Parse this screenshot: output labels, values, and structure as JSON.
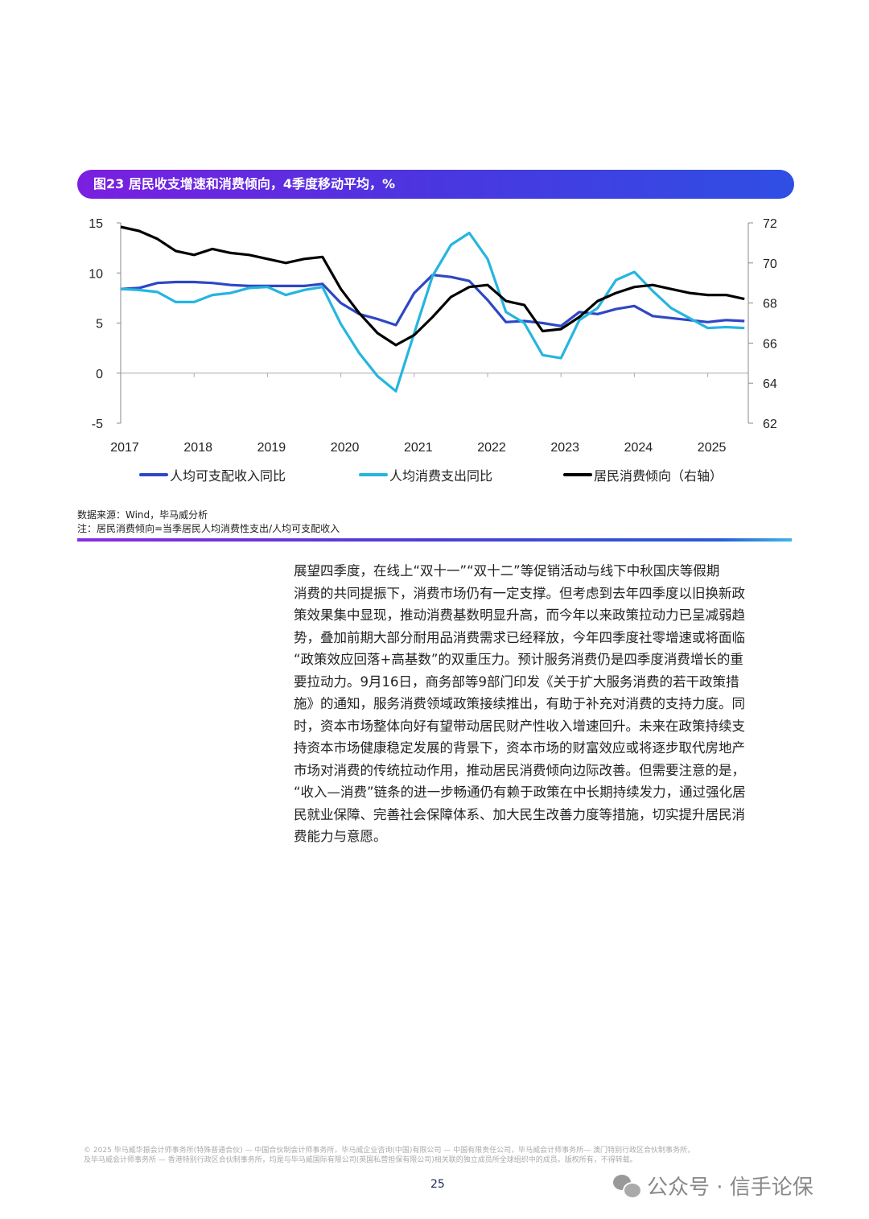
{
  "figure": {
    "title": "图23 居民收支增速和消费倾向，4季度移动平均，%",
    "source": "数据来源：Wind，毕马威分析",
    "note": "注：居民消费倾向=当季居民人均消费性支出/人均可支配收入"
  },
  "chart_data": {
    "type": "line",
    "title": "图23 居民收支增速和消费倾向，4季度移动平均，%",
    "x_tick_labels": [
      "2017",
      "2018",
      "2019",
      "2020",
      "2021",
      "2022",
      "2023",
      "2024",
      "2025"
    ],
    "x_frequency": "quarterly, 2017Q1–2025Q3",
    "y_left": {
      "lim": [
        -5,
        15
      ],
      "ticks": [
        "-5",
        "0",
        "5",
        "10",
        "15"
      ]
    },
    "y_right": {
      "lim": [
        62,
        72
      ],
      "ticks": [
        "62",
        "64",
        "66",
        "68",
        "70",
        "72"
      ]
    },
    "legend_position": "bottom",
    "grid": false,
    "series": [
      {
        "name": "人均可支配收入同比",
        "axis": "left",
        "color": "#2e47c4",
        "values": [
          8.4,
          8.5,
          9.0,
          9.1,
          9.1,
          9.0,
          8.8,
          8.7,
          8.7,
          8.7,
          8.7,
          8.9,
          7.0,
          5.9,
          5.4,
          4.8,
          8.0,
          9.8,
          9.6,
          9.2,
          7.3,
          5.1,
          5.2,
          5.0,
          4.7,
          6.1,
          5.9,
          6.4,
          6.7,
          5.7,
          5.5,
          5.3,
          5.1,
          5.3,
          5.2
        ]
      },
      {
        "name": "人均消费支出同比",
        "axis": "left",
        "color": "#25b5e0",
        "values": [
          8.4,
          8.3,
          8.1,
          7.1,
          7.1,
          7.8,
          8.0,
          8.5,
          8.6,
          7.8,
          8.3,
          8.6,
          4.9,
          2.0,
          -0.3,
          -1.8,
          4.0,
          9.7,
          12.8,
          14.0,
          11.4,
          6.1,
          5.0,
          1.8,
          1.5,
          5.3,
          6.5,
          9.3,
          10.1,
          8.2,
          6.5,
          5.5,
          4.5,
          4.6,
          4.5
        ]
      },
      {
        "name": "居民消费倾向（右轴）",
        "axis": "right",
        "color": "#000000",
        "values": [
          71.8,
          71.6,
          71.2,
          70.6,
          70.4,
          70.7,
          70.5,
          70.4,
          70.2,
          70.0,
          70.2,
          70.3,
          68.7,
          67.5,
          66.5,
          65.9,
          66.4,
          67.3,
          68.3,
          68.8,
          68.9,
          68.1,
          67.9,
          66.6,
          66.7,
          67.3,
          68.1,
          68.5,
          68.8,
          68.9,
          68.7,
          68.5,
          68.4,
          68.4,
          68.2
        ]
      }
    ]
  },
  "body": {
    "lines": [
      "展望四季度，在线上“双十一”“双十二”等促销活动与线下中秋国庆等假期",
      "消费的共同提振下，消费市场仍有一定支撑。但考虑到去年四季度以旧换新政",
      "策效果集中显现，推动消费基数明显升高，而今年以来政策拉动力已呈减弱趋",
      "势，叠加前期大部分耐用品消费需求已经释放，今年四季度社零增速或将面临",
      "“政策效应回落+高基数”的双重压力。预计服务消费仍是四季度消费增长的重",
      "要拉动力。9月16日，商务部等9部门印发《关于扩大服务消费的若干政策措",
      "施》的通知，服务消费领域政策接续推出，有助于补充对消费的支持力度。同",
      "时，资本市场整体向好有望带动居民财产性收入增速回升。未来在政策持续支",
      "持资本市场健康稳定发展的背景下，资本市场的财富效应或将逐步取代房地产",
      "市场对消费的传统拉动作用，推动居民消费倾向边际改善。但需要注意的是，",
      "“收入—消费”链条的进一步畅通仍有赖于政策在中长期持续发力，通过强化居",
      "民就业保障、完善社会保障体系、加大民生改善力度等措施，切实提升居民消",
      "费能力与意愿。"
    ]
  },
  "footer": {
    "line1": "© 2025 毕马威华振会计师事务所(特殊普通合伙) — 中国合伙制会计师事务所，毕马威企业咨询(中国)有限公司 — 中国有限责任公司，毕马威会计师事务所— 澳门特别行政区合伙制事务所，",
    "line2": "及毕马威会计师事务所 — 香港特别行政区合伙制事务所，均是与毕马威国际有限公司(英国私营担保有限公司)相关联的独立成员所全球组织中的成员。版权所有，不得转载。",
    "page_number": "25"
  },
  "watermark": {
    "text": "公众号 · 信手论保",
    "icon": "wechat-icon"
  }
}
